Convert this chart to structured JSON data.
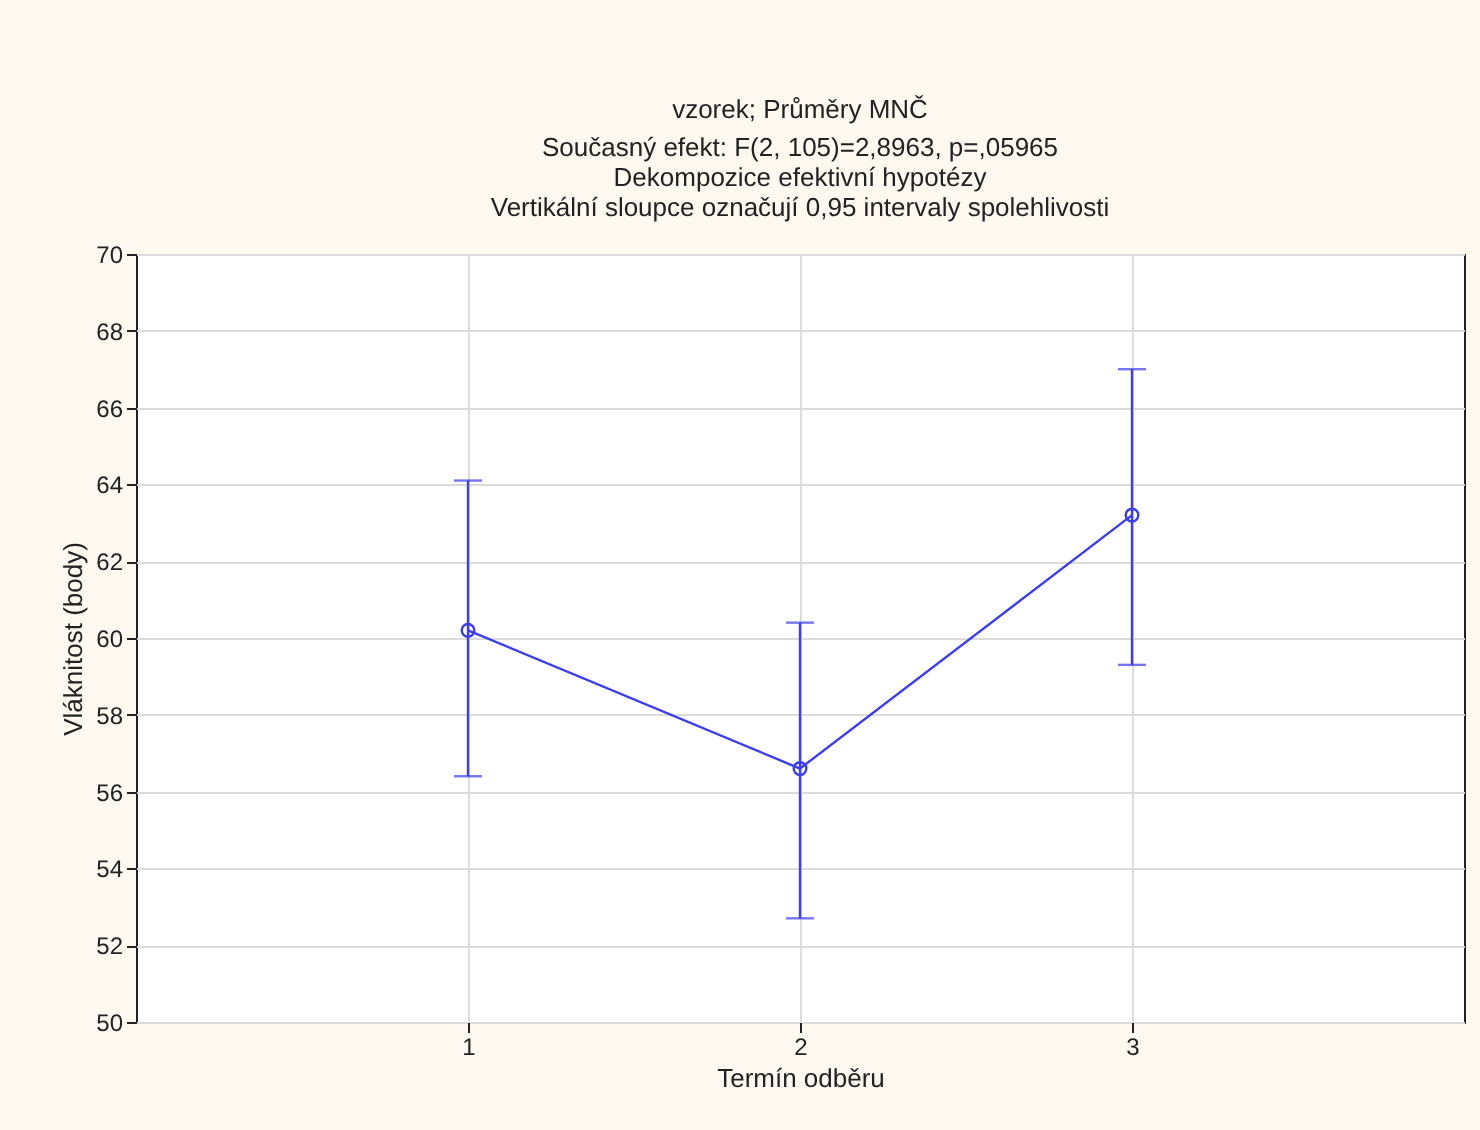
{
  "chart_data": {
    "type": "line",
    "title": "vzorek; Průměry MNČ",
    "subtitle": "Současný efekt: F(2, 105)=2,8963, p=,05965",
    "annotations": [
      "Dekompozice efektivní hypotézy",
      "Vertikální sloupce označují 0,95 intervaly spolehlivosti"
    ],
    "xlabel": "Termín odběru",
    "ylabel": "Vláknitost (body)",
    "x": [
      1,
      2,
      3
    ],
    "series": [
      {
        "color": "#3c3cf0",
        "values": [
          60.2,
          56.6,
          63.2
        ],
        "errors": [
          [
            56.4,
            64.1
          ],
          [
            52.7,
            60.4
          ],
          [
            59.3,
            67.0
          ]
        ]
      }
    ],
    "xlim": [
      0,
      4
    ],
    "xticks": [
      1,
      2,
      3
    ],
    "ylim": [
      50,
      70
    ],
    "yticks": [
      50,
      52,
      54,
      56,
      58,
      60,
      62,
      64,
      66,
      68,
      70
    ],
    "grid": true,
    "marker": "circle",
    "line_style": "solid"
  }
}
